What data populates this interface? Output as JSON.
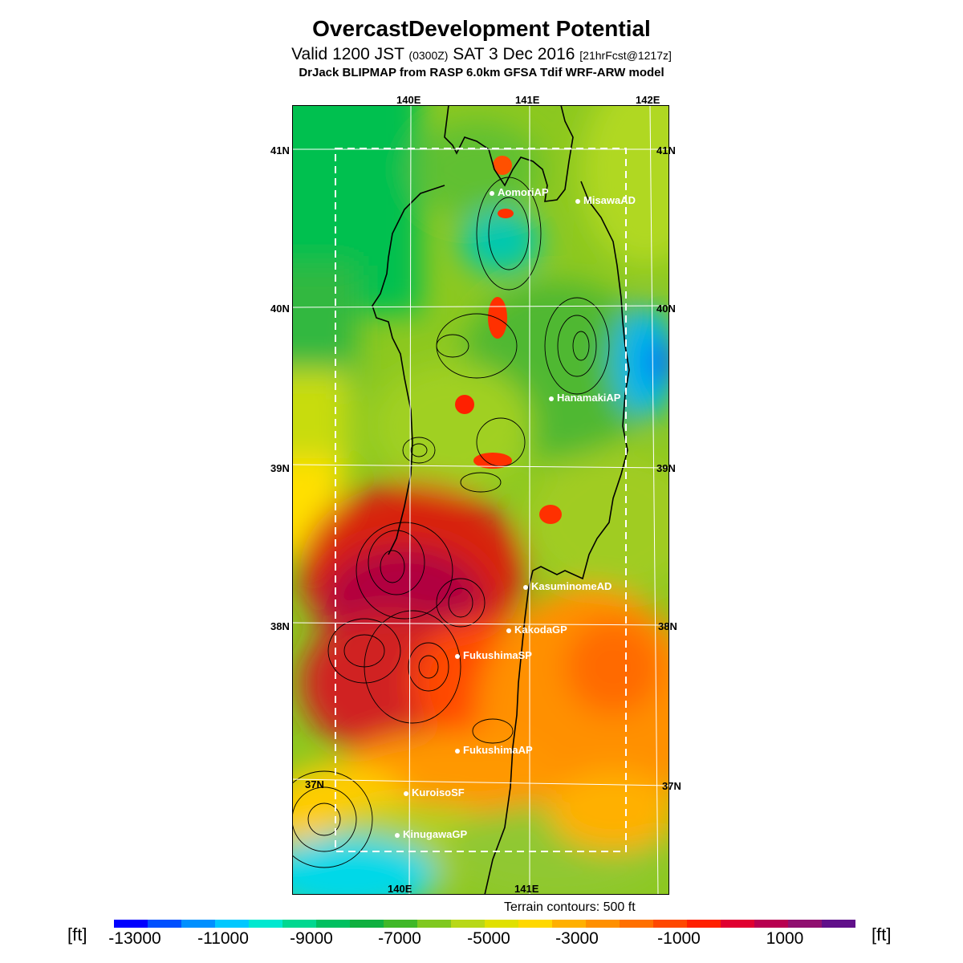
{
  "title": "OvercastDevelopment Potential",
  "subtitle": {
    "valid": "Valid 1200 JST",
    "zulu": "(0300Z)",
    "date": "SAT 3 Dec 2016",
    "fcst": "[21hrFcst@1217z]"
  },
  "model_line": "DrJack BLIPMAP from RASP 6.0km GFSA Tdif WRF-ARW model",
  "axes": {
    "lon_top": [
      "140E",
      "141E",
      "142E"
    ],
    "lon_bottom": [
      "140E",
      "141E"
    ],
    "lat_left": [
      "41N",
      "40N",
      "39N",
      "38N",
      "37N"
    ],
    "lat_right": [
      "41N",
      "40N",
      "39N",
      "38N",
      "37N"
    ]
  },
  "sites": [
    "AomoriAP",
    "MisawaAD",
    "HanamakiAP",
    "KasuminomeAD",
    "KakodaGP",
    "FukushimaSP",
    "FukushimaAP",
    "KuroisoSF",
    "KinugawaGP"
  ],
  "terrain_note": "Terrain contours: 500 ft",
  "colorbar": {
    "unit": "[ft]",
    "tick_labels": [
      "-13000",
      "-11000",
      "-9000",
      "-7000",
      "-5000",
      "-3000",
      "-1000",
      "1000"
    ],
    "colors": [
      "#0000ff",
      "#0050ff",
      "#0090ff",
      "#00c8ff",
      "#00e8d0",
      "#00d890",
      "#00c060",
      "#10b040",
      "#40b828",
      "#80c820",
      "#b8d818",
      "#e0e000",
      "#ffd800",
      "#ffb000",
      "#ff9000",
      "#ff7000",
      "#ff4800",
      "#ff2000",
      "#e00030",
      "#b80050",
      "#901070",
      "#60108a"
    ]
  }
}
